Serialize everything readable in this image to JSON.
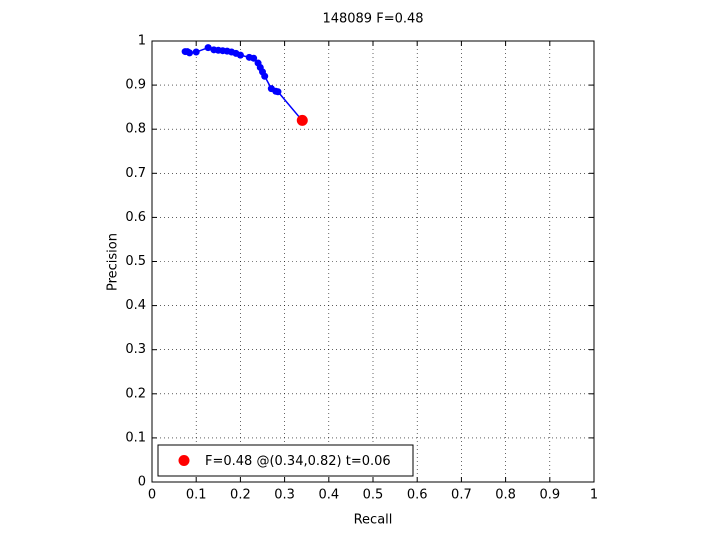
{
  "chart_data": {
    "type": "line",
    "title": "148089 F=0.48",
    "x_label": "Recall",
    "y_label": "Precision",
    "xlim": [
      0,
      1
    ],
    "ylim": [
      0,
      1
    ],
    "xticks": [
      0,
      0.1,
      0.2,
      0.3,
      0.4,
      0.5,
      0.6,
      0.7,
      0.8,
      0.9,
      1
    ],
    "yticks": [
      0,
      0.1,
      0.2,
      0.3,
      0.4,
      0.5,
      0.6,
      0.7,
      0.8,
      0.9,
      1
    ],
    "grid": true,
    "legend": "lower left",
    "series": [
      {
        "color": "#0000ff",
        "line": true,
        "x": [
          0.075,
          0.08,
          0.085,
          0.1,
          0.127,
          0.14,
          0.15,
          0.16,
          0.17,
          0.18,
          0.19,
          0.2,
          0.22,
          0.23,
          0.24,
          0.245,
          0.25,
          0.255,
          0.27,
          0.28,
          0.285,
          0.337
        ],
        "values": [
          0.976,
          0.976,
          0.973,
          0.975,
          0.985,
          0.98,
          0.979,
          0.978,
          0.977,
          0.975,
          0.972,
          0.968,
          0.963,
          0.961,
          0.95,
          0.94,
          0.93,
          0.92,
          0.892,
          0.886,
          0.885,
          0.823
        ]
      },
      {
        "name": "F=0.48 @(0.34,0.82) t=0.06",
        "color": "#ff0000",
        "line": false,
        "x": [
          0.34
        ],
        "values": [
          0.82
        ]
      }
    ]
  }
}
